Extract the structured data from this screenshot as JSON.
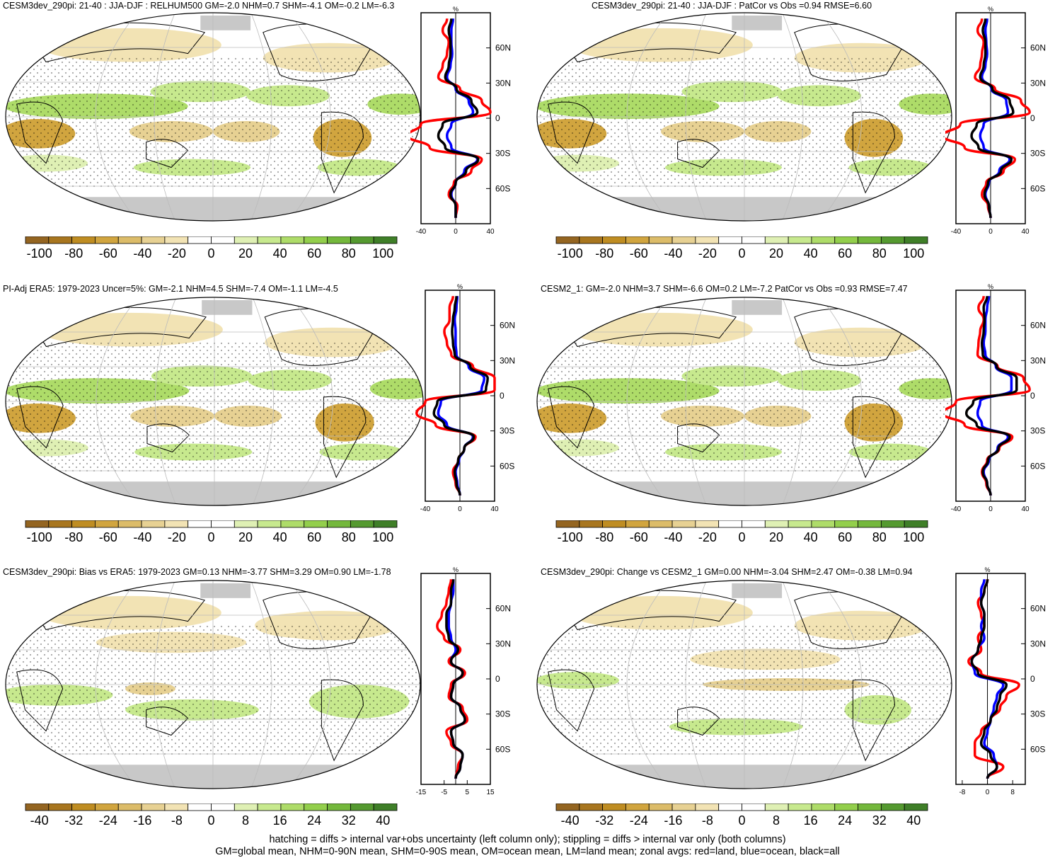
{
  "panels": [
    {
      "title": "CESM3dev_290pi: 21-40 : JJA-DJF : RELHUM500 GM=-2.0 NHM=0.7 SHM=-4.1 OM=-0.2 LM=-6.3",
      "zonal_xticks": [
        "-40",
        "0",
        "40"
      ],
      "colorbar_labels": [
        "-100",
        "-80",
        "-60",
        "-40",
        "-20",
        "0",
        "20",
        "40",
        "60",
        "80",
        "100"
      ]
    },
    {
      "title": "CESM3dev_290pi: 21-40 : JJA-DJF : PatCor vs Obs =0.94 RMSE=6.60",
      "zonal_xticks": [
        "-40",
        "0",
        "40"
      ],
      "colorbar_labels": [
        "-100",
        "-80",
        "-60",
        "-40",
        "-20",
        "0",
        "20",
        "40",
        "60",
        "80",
        "100"
      ]
    },
    {
      "title": "PI-Adj ERA5: 1979-2023 Uncer=5%: GM=-2.1 NHM=4.5 SHM=-7.4 OM=-1.1 LM=-4.5",
      "zonal_xticks": [
        "-40",
        "0",
        "40"
      ],
      "colorbar_labels": [
        "-100",
        "-80",
        "-60",
        "-40",
        "-20",
        "0",
        "20",
        "40",
        "60",
        "80",
        "100"
      ]
    },
    {
      "title": "CESM2_1: GM=-2.0 NHM=3.7 SHM=-6.6 OM=0.2 LM=-7.2 PatCor vs Obs =0.93 RMSE=7.47",
      "zonal_xticks": [
        "-40",
        "0",
        "40"
      ],
      "colorbar_labels": [
        "-100",
        "-80",
        "-60",
        "-40",
        "-20",
        "0",
        "20",
        "40",
        "60",
        "80",
        "100"
      ]
    },
    {
      "title": "CESM3dev_290pi: Bias vs ERA5: 1979-2023 GM=0.13 NHM=-3.77 SHM=3.29 OM=0.90 LM=-1.78",
      "zonal_xticks": [
        "-15",
        "-5",
        "5",
        "15"
      ],
      "colorbar_labels": [
        "-40",
        "-32",
        "-24",
        "-16",
        "-8",
        "0",
        "8",
        "16",
        "24",
        "32",
        "40"
      ]
    },
    {
      "title": "CESM3dev_290pi: Change vs CESM2_1 GM=0.00 NHM=-3.04 SHM=2.47 OM=-0.38 LM=0.94",
      "zonal_xticks": [
        "-8",
        "0",
        "8"
      ],
      "colorbar_labels": [
        "-40",
        "-32",
        "-24",
        "-16",
        "-8",
        "0",
        "8",
        "16",
        "24",
        "32",
        "40"
      ]
    }
  ],
  "zonal_unit": "%",
  "lat_ticks": [
    "60N",
    "30N",
    "0",
    "30S",
    "60S"
  ],
  "colors": {
    "land_line": "#ff0000",
    "ocean_line": "#0000ff",
    "all_line": "#000000",
    "missing": "#c8c8c8",
    "colorbar": [
      "#946521",
      "#a8761f",
      "#bf8d22",
      "#d1a53f",
      "#dcbc69",
      "#e7d193",
      "#f2e3b4",
      "#ffffff",
      "#ffffff",
      "#dff0b4",
      "#c7e98e",
      "#aedc69",
      "#93cf4c",
      "#74b83c",
      "#559a30",
      "#3f7f28"
    ]
  },
  "chart_data": [
    {
      "type": "heatmap",
      "title": "CESM3dev_290pi: 21-40 : JJA-DJF : RELHUM500 GM=-2.0 NHM=0.7 SHM=-4.1 OM=-0.2 LM=-6.3",
      "zonal_mean": {
        "ylim": [
          -90,
          90
        ],
        "xlim": [
          -40,
          40
        ],
        "lat": [
          -85,
          -75,
          -65,
          -55,
          -45,
          -35,
          -25,
          -15,
          -5,
          5,
          15,
          25,
          35,
          45,
          55,
          65,
          75,
          85
        ],
        "series": [
          {
            "color": "red",
            "values": [
              0,
              2,
              -8,
              -2,
              18,
              30,
              -30,
              -55,
              -40,
              40,
              30,
              5,
              -20,
              -15,
              -10,
              -8,
              -15,
              -10
            ]
          },
          {
            "color": "blue",
            "values": [
              0,
              0,
              -5,
              0,
              10,
              25,
              -5,
              -10,
              -5,
              20,
              15,
              0,
              -10,
              -6,
              -4,
              -5,
              -5,
              -3
            ]
          },
          {
            "color": "black",
            "values": [
              0,
              0,
              -6,
              0,
              12,
              26,
              -12,
              -20,
              -15,
              25,
              18,
              1,
              -12,
              -8,
              -6,
              -6,
              -8,
              -5
            ]
          }
        ]
      }
    },
    {
      "type": "heatmap",
      "title": "CESM3dev_290pi: 21-40 : JJA-DJF : PatCor vs Obs =0.94 RMSE=6.60",
      "zonal_mean": {
        "ylim": [
          -90,
          90
        ],
        "xlim": [
          -40,
          40
        ],
        "lat": [
          -85,
          -75,
          -65,
          -55,
          -45,
          -35,
          -25,
          -15,
          -5,
          5,
          15,
          25,
          35,
          45,
          55,
          65,
          75,
          85
        ],
        "series": [
          {
            "color": "red",
            "values": [
              0,
              -3,
              -10,
              -5,
              15,
              28,
              -30,
              -55,
              -35,
              45,
              35,
              5,
              -18,
              -12,
              -10,
              -8,
              -15,
              -10
            ]
          },
          {
            "color": "blue",
            "values": [
              0,
              -2,
              -6,
              -2,
              10,
              22,
              -8,
              -12,
              -8,
              20,
              18,
              1,
              -10,
              -6,
              -4,
              -5,
              -6,
              -4
            ]
          },
          {
            "color": "black",
            "values": [
              0,
              -2,
              -7,
              -3,
              12,
              24,
              -14,
              -22,
              -16,
              26,
              22,
              2,
              -12,
              -8,
              -6,
              -6,
              -9,
              -6
            ]
          }
        ]
      }
    },
    {
      "type": "heatmap",
      "title": "PI-Adj ERA5: 1979-2023 Uncer=5%: GM=-2.1 NHM=4.5 SHM=-7.4 OM=-1.1 LM=-4.5",
      "zonal_mean": {
        "ylim": [
          -90,
          90
        ],
        "xlim": [
          -40,
          40
        ],
        "lat": [
          -85,
          -75,
          -65,
          -55,
          -45,
          -35,
          -25,
          -15,
          -5,
          5,
          15,
          25,
          35,
          45,
          55,
          65,
          75,
          85
        ],
        "series": [
          {
            "color": "red",
            "values": [
              0,
              -5,
              -8,
              -2,
              5,
              18,
              -28,
              -50,
              -40,
              40,
              40,
              15,
              -10,
              -15,
              -18,
              -12,
              -12,
              -8
            ]
          },
          {
            "color": "blue",
            "values": [
              0,
              -3,
              -5,
              -1,
              5,
              15,
              -15,
              -25,
              -22,
              25,
              28,
              10,
              -4,
              -5,
              -5,
              -6,
              -4,
              -3
            ]
          },
          {
            "color": "black",
            "values": [
              0,
              -4,
              -6,
              -2,
              5,
              16,
              -18,
              -30,
              -26,
              30,
              32,
              12,
              -6,
              -8,
              -9,
              -8,
              -6,
              -4
            ]
          }
        ]
      }
    },
    {
      "type": "heatmap",
      "title": "CESM2_1: GM=-2.0 NHM=3.7 SHM=-6.6 OM=0.2 LM=-7.2 PatCor vs Obs =0.93 RMSE=7.47",
      "zonal_mean": {
        "ylim": [
          -90,
          90
        ],
        "xlim": [
          -40,
          40
        ],
        "lat": [
          -85,
          -75,
          -65,
          -55,
          -45,
          -35,
          -25,
          -15,
          -5,
          5,
          15,
          25,
          35,
          45,
          55,
          65,
          75,
          85
        ],
        "series": [
          {
            "color": "red",
            "values": [
              0,
              -5,
              -10,
              -4,
              10,
              25,
              -30,
              -55,
              -40,
              45,
              38,
              8,
              -15,
              -14,
              -12,
              -8,
              -14,
              -8
            ]
          },
          {
            "color": "blue",
            "values": [
              0,
              -4,
              -8,
              -2,
              8,
              20,
              -10,
              -15,
              -12,
              24,
              24,
              6,
              -6,
              -8,
              -6,
              -6,
              -4,
              -2
            ]
          },
          {
            "color": "black",
            "values": [
              0,
              -4,
              -9,
              -3,
              9,
              22,
              -16,
              -28,
              -20,
              30,
              30,
              7,
              -9,
              -10,
              -8,
              -7,
              -8,
              -4
            ]
          }
        ]
      }
    },
    {
      "type": "heatmap",
      "title": "CESM3dev_290pi: Bias vs ERA5: 1979-2023 GM=0.13 NHM=-3.77 SHM=3.29 OM=0.90 LM=-1.78",
      "zonal_mean": {
        "ylim": [
          -90,
          90
        ],
        "xlim": [
          -15,
          15
        ],
        "lat": [
          -85,
          -75,
          -65,
          -55,
          -45,
          -35,
          -25,
          -15,
          -5,
          5,
          15,
          25,
          35,
          45,
          55,
          65,
          75,
          85
        ],
        "series": [
          {
            "color": "red",
            "values": [
              0,
              1,
              3,
              -2,
              -4,
              5,
              3,
              -3,
              -2,
              4,
              -3,
              2,
              -5,
              -8,
              -6,
              -4,
              -3,
              -2
            ]
          },
          {
            "color": "blue",
            "values": [
              0,
              2,
              3,
              -1,
              -2,
              4,
              2,
              -2,
              -1,
              3,
              -2,
              0,
              -2,
              -3,
              -3,
              -2,
              -1,
              -1
            ]
          },
          {
            "color": "black",
            "values": [
              0,
              2,
              3,
              -1,
              -2,
              4,
              2,
              -2,
              -1,
              3,
              -2,
              1,
              -3,
              -4,
              -4,
              -2,
              -2,
              -1
            ]
          }
        ]
      }
    },
    {
      "type": "heatmap",
      "title": "CESM3dev_290pi: Change vs CESM2_1 GM=0.00 NHM=-3.04 SHM=2.47 OM=-0.38 LM=0.94",
      "zonal_mean": {
        "ylim": [
          -90,
          90
        ],
        "xlim": [
          -10,
          12
        ],
        "lat": [
          -85,
          -75,
          -65,
          -55,
          -45,
          -35,
          -25,
          -15,
          -5,
          5,
          15,
          25,
          35,
          45,
          55,
          65,
          75,
          85
        ],
        "series": [
          {
            "color": "red",
            "values": [
              0,
              5,
              -4,
              -4,
              -2,
              1,
              4,
              6,
              10,
              -2,
              -6,
              -2,
              -3,
              -1,
              -2,
              -3,
              -1,
              0
            ]
          },
          {
            "color": "blue",
            "values": [
              0,
              3,
              2,
              -1,
              0,
              1,
              2,
              3,
              5,
              -4,
              -5,
              -3,
              -1,
              -2,
              -1,
              -2,
              -2,
              -1
            ]
          },
          {
            "color": "black",
            "values": [
              0,
              3,
              1,
              -2,
              -1,
              1,
              3,
              4,
              6,
              -3,
              -5,
              -3,
              -2,
              -1,
              -1,
              -2,
              -1,
              0
            ]
          }
        ]
      }
    }
  ],
  "footer": {
    "line1": "hatching = diffs > internal var+obs uncertainty (left column only); stippling = diffs > internal var only (both columns)",
    "line2": "GM=global mean, NHM=0-90N mean, SHM=0-90S mean, OM=ocean mean, LM=land mean; zonal avgs: red=land, blue=ocean, black=all"
  }
}
